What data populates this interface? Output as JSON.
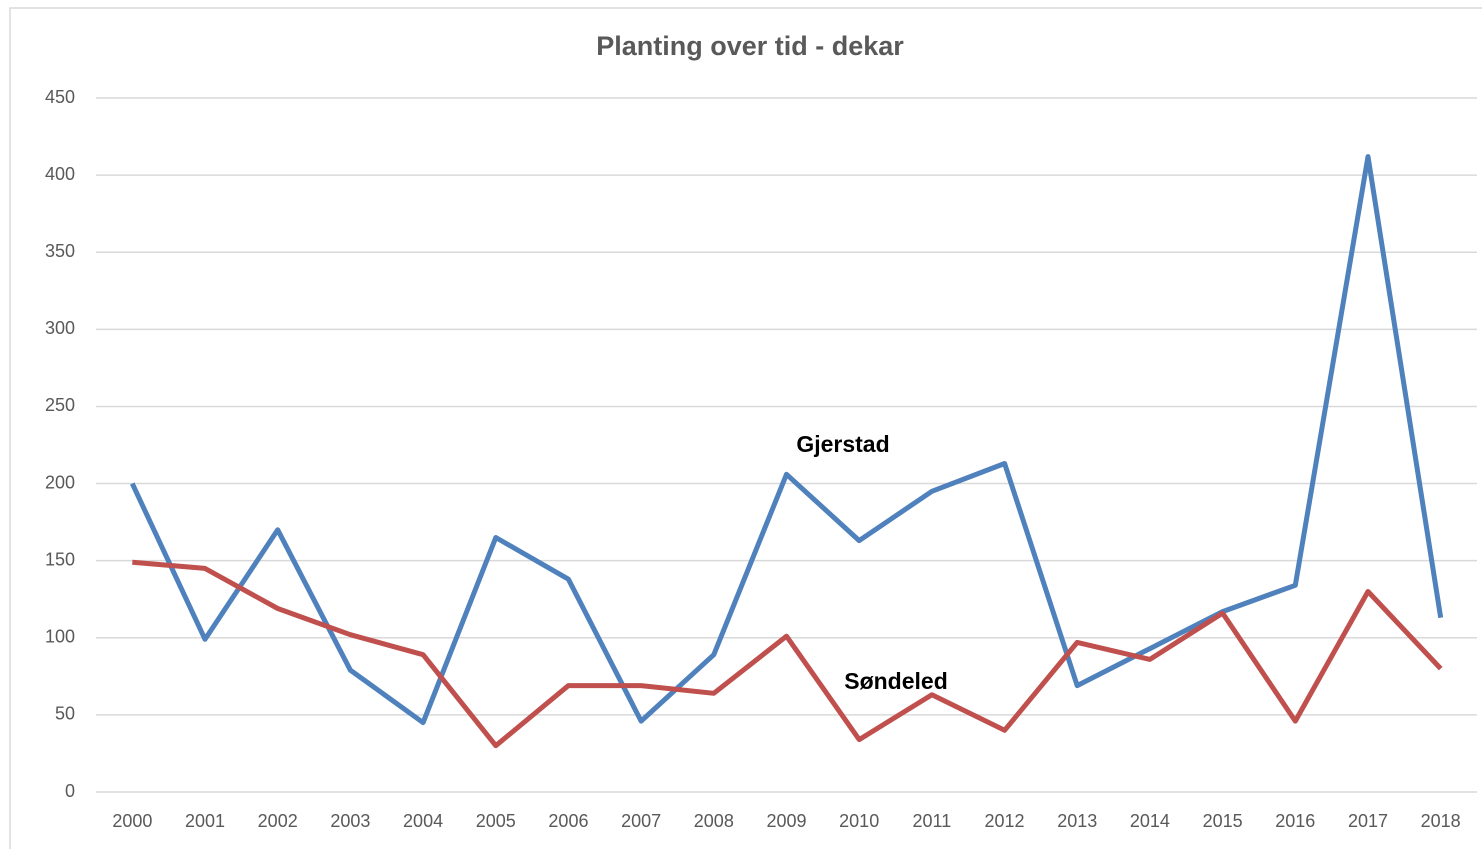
{
  "chart_data": {
    "type": "line",
    "title": "Planting over tid - dekar",
    "categories": [
      "2000",
      "2001",
      "2002",
      "2003",
      "2004",
      "2005",
      "2006",
      "2007",
      "2008",
      "2009",
      "2010",
      "2011",
      "2012",
      "2013",
      "2014",
      "2015",
      "2016",
      "2017",
      "2018"
    ],
    "series": [
      {
        "name": "Gjerstad",
        "color": "#4f81bd",
        "values": [
          200,
          99,
          170,
          79,
          45,
          165,
          138,
          46,
          89,
          206,
          163,
          195,
          213,
          69,
          93,
          117,
          134,
          412,
          113
        ]
      },
      {
        "name": "Søndeled",
        "color": "#c0504d",
        "values": [
          149,
          145,
          119,
          102,
          89,
          30,
          69,
          69,
          64,
          101,
          34,
          63,
          40,
          97,
          86,
          116,
          46,
          130,
          80
        ]
      }
    ],
    "ylim": [
      0,
      450
    ],
    "yticks": [
      0,
      50,
      100,
      150,
      200,
      250,
      300,
      350,
      400,
      450
    ],
    "grid": true
  }
}
